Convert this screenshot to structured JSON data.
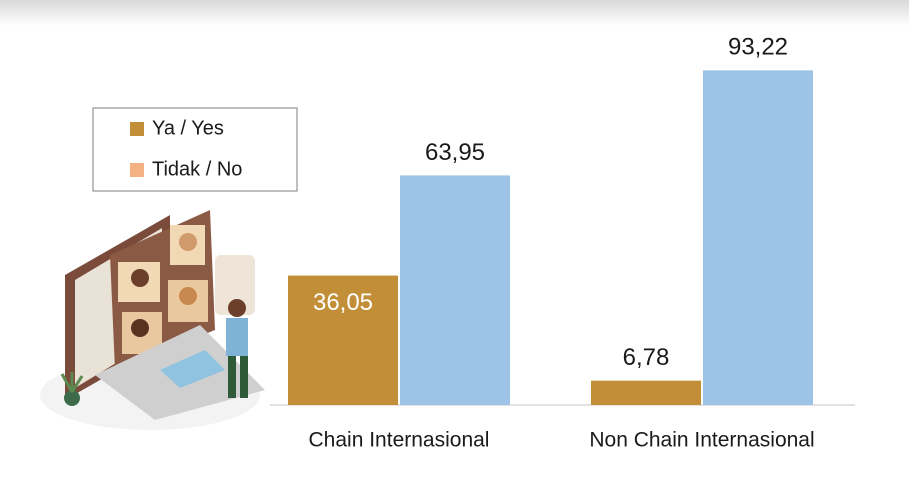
{
  "chart_data": {
    "type": "bar",
    "categories": [
      "Chain Internasional",
      "Non Chain Internasional"
    ],
    "series": [
      {
        "name": "Ya / Yes",
        "color": "#c28f38",
        "legend_color": "#c28f38",
        "values": [
          36.05,
          6.78
        ],
        "value_labels": [
          "36,05",
          "6,78"
        ]
      },
      {
        "name": "Tidak / No",
        "color": "#9dc3e6",
        "legend_color": "#f4b183",
        "values": [
          63.95,
          93.22
        ],
        "value_labels": [
          "63,95",
          "93,22"
        ]
      }
    ],
    "ylim": [
      0,
      100
    ]
  }
}
